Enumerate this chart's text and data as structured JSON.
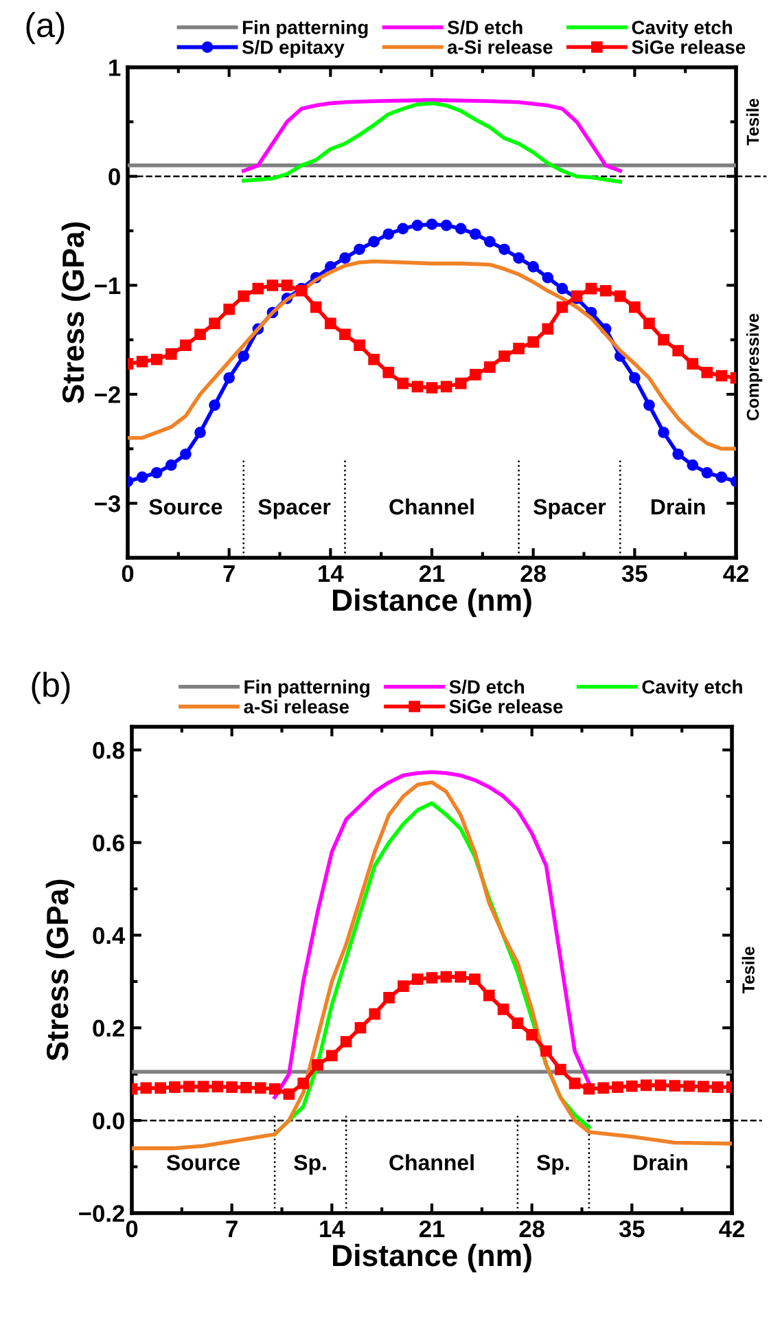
{
  "chart_data": [
    {
      "type": "line",
      "title": "(a)",
      "xlabel": "Distance (nm)",
      "ylabel": "Stress (GPa)",
      "xlim": [
        0,
        42
      ],
      "xticks": [
        0,
        7,
        14,
        21,
        28,
        35,
        42
      ],
      "ylim": [
        -3.5,
        1
      ],
      "yticks": [
        -3,
        -2,
        -1,
        0,
        1
      ],
      "legend": "top",
      "grid": false,
      "series": [
        {
          "name": "Fin patterning",
          "color": "#808080",
          "marker": "none",
          "x": [
            0,
            42
          ],
          "values": [
            0.1,
            0.1
          ]
        },
        {
          "name": "S/D etch",
          "color": "#ff00ff",
          "marker": "none",
          "x": [
            8,
            9,
            10,
            11,
            12,
            13,
            14,
            15,
            17,
            21,
            25,
            27,
            29,
            30,
            31,
            32,
            33,
            34
          ],
          "values": [
            0.05,
            0.1,
            0.3,
            0.5,
            0.62,
            0.65,
            0.67,
            0.68,
            0.69,
            0.7,
            0.69,
            0.68,
            0.65,
            0.62,
            0.5,
            0.3,
            0.1,
            0.05
          ]
        },
        {
          "name": "Cavity etch",
          "color": "#00ff00",
          "marker": "none",
          "x": [
            8,
            9,
            10,
            11,
            12,
            13,
            14,
            15,
            16,
            17,
            18,
            19,
            20,
            21,
            22,
            23,
            24,
            25,
            26,
            27,
            28,
            29,
            30,
            31,
            32,
            33,
            34
          ],
          "values": [
            -0.04,
            -0.03,
            -0.02,
            0.02,
            0.1,
            0.15,
            0.25,
            0.3,
            0.38,
            0.47,
            0.57,
            0.62,
            0.66,
            0.67,
            0.65,
            0.6,
            0.52,
            0.45,
            0.35,
            0.3,
            0.22,
            0.12,
            0.05,
            0.0,
            -0.01,
            -0.03,
            -0.05
          ]
        },
        {
          "name": "S/D epitaxy",
          "color": "#0000ff",
          "marker": "circle",
          "x": [
            0,
            1,
            2,
            3,
            4,
            5,
            6,
            7,
            8,
            9,
            10,
            11,
            12,
            13,
            14,
            15,
            16,
            17,
            18,
            19,
            20,
            21,
            22,
            23,
            24,
            25,
            26,
            27,
            28,
            29,
            30,
            31,
            32,
            33,
            34,
            35,
            36,
            37,
            38,
            39,
            40,
            41,
            42
          ],
          "values": [
            -2.8,
            -2.76,
            -2.72,
            -2.65,
            -2.55,
            -2.35,
            -2.1,
            -1.85,
            -1.65,
            -1.4,
            -1.25,
            -1.12,
            -1.03,
            -0.93,
            -0.83,
            -0.75,
            -0.67,
            -0.6,
            -0.53,
            -0.48,
            -0.45,
            -0.44,
            -0.45,
            -0.48,
            -0.53,
            -0.6,
            -0.67,
            -0.75,
            -0.83,
            -0.93,
            -1.03,
            -1.12,
            -1.25,
            -1.4,
            -1.65,
            -1.85,
            -2.1,
            -2.35,
            -2.55,
            -2.65,
            -2.72,
            -2.76,
            -2.8
          ]
        },
        {
          "name": "a-Si release",
          "color": "#f08228",
          "marker": "none",
          "x": [
            0,
            1,
            2,
            3,
            4,
            5,
            6,
            7,
            8,
            9,
            10,
            11,
            12,
            13,
            14,
            15,
            16,
            17,
            19,
            21,
            23,
            25,
            26,
            27,
            28,
            29,
            30,
            31,
            32,
            33,
            34,
            35,
            36,
            37,
            38,
            39,
            40,
            41,
            42
          ],
          "values": [
            -2.4,
            -2.4,
            -2.35,
            -2.3,
            -2.2,
            -2.0,
            -1.85,
            -1.7,
            -1.55,
            -1.4,
            -1.25,
            -1.13,
            -1.05,
            -0.95,
            -0.88,
            -0.82,
            -0.79,
            -0.78,
            -0.79,
            -0.8,
            -0.8,
            -0.81,
            -0.85,
            -0.9,
            -0.97,
            -1.05,
            -1.12,
            -1.2,
            -1.3,
            -1.45,
            -1.6,
            -1.72,
            -1.85,
            -2.05,
            -2.22,
            -2.35,
            -2.45,
            -2.5,
            -2.5
          ]
        },
        {
          "name": "SiGe release",
          "color": "#ff0000",
          "marker": "square",
          "x": [
            0,
            1,
            2,
            3,
            4,
            5,
            6,
            7,
            8,
            9,
            10,
            11,
            12,
            13,
            14,
            15,
            16,
            17,
            18,
            19,
            20,
            21,
            22,
            23,
            24,
            25,
            26,
            27,
            28,
            29,
            30,
            31,
            32,
            33,
            34,
            35,
            36,
            37,
            38,
            39,
            40,
            41,
            42
          ],
          "values": [
            -1.72,
            -1.7,
            -1.68,
            -1.63,
            -1.55,
            -1.45,
            -1.35,
            -1.22,
            -1.1,
            -1.03,
            -1.0,
            -1.0,
            -1.05,
            -1.2,
            -1.35,
            -1.45,
            -1.55,
            -1.68,
            -1.8,
            -1.9,
            -1.93,
            -1.94,
            -1.93,
            -1.9,
            -1.82,
            -1.75,
            -1.65,
            -1.58,
            -1.52,
            -1.4,
            -1.2,
            -1.1,
            -1.03,
            -1.05,
            -1.1,
            -1.2,
            -1.35,
            -1.5,
            -1.6,
            -1.72,
            -1.8,
            -1.83,
            -1.85
          ]
        }
      ],
      "ref_lines": [
        {
          "axis": "y",
          "value": 0,
          "line_style": "dashed"
        },
        {
          "axis": "x",
          "value": 8,
          "line_style": "dotted"
        },
        {
          "axis": "x",
          "value": 15,
          "line_style": "dotted"
        },
        {
          "axis": "x",
          "value": 27,
          "line_style": "dotted"
        },
        {
          "axis": "x",
          "value": 34,
          "line_style": "dotted"
        }
      ],
      "annotations": [
        "Source",
        "Spacer",
        "Channel",
        "Spacer",
        "Drain",
        "Tesile",
        "Compressive"
      ]
    },
    {
      "type": "line",
      "title": "(b)",
      "xlabel": "Distance (nm)",
      "ylabel": "Stress (GPa)",
      "xlim": [
        0,
        42
      ],
      "xticks": [
        0,
        7,
        14,
        21,
        28,
        35,
        42
      ],
      "ylim": [
        -0.2,
        0.85
      ],
      "yticks": [
        {
          "value": -0.2,
          "label": "−0.2"
        },
        {
          "value": 0,
          "label": "0.0"
        },
        {
          "value": 0.2,
          "label": "0.2"
        },
        {
          "value": 0.4,
          "label": "0.4"
        },
        {
          "value": 0.6,
          "label": "0.6"
        },
        {
          "value": 0.8,
          "label": "0.8"
        }
      ],
      "legend": "top",
      "grid": false,
      "series": [
        {
          "name": "Fin patterning",
          "color": "#808080",
          "marker": "none",
          "x": [
            0,
            42
          ],
          "values": [
            0.105,
            0.105
          ]
        },
        {
          "name": "S/D etch",
          "color": "#ff00ff",
          "marker": "none",
          "x": [
            10,
            11,
            12,
            13,
            14,
            15,
            16,
            17,
            18,
            19,
            20,
            21,
            22,
            23,
            24,
            25,
            26,
            27,
            28,
            29,
            30,
            31,
            32
          ],
          "values": [
            0.05,
            0.1,
            0.3,
            0.45,
            0.58,
            0.65,
            0.68,
            0.71,
            0.73,
            0.745,
            0.75,
            0.752,
            0.75,
            0.745,
            0.735,
            0.72,
            0.7,
            0.67,
            0.62,
            0.55,
            0.35,
            0.15,
            0.08
          ]
        },
        {
          "name": "Cavity etch",
          "color": "#00ff00",
          "marker": "none",
          "x": [
            10,
            11,
            12,
            13,
            14,
            15,
            16,
            17,
            18,
            19,
            20,
            21,
            22,
            23,
            24,
            25,
            26,
            27,
            28,
            29,
            30,
            31,
            32
          ],
          "values": [
            -0.03,
            0.0,
            0.03,
            0.12,
            0.25,
            0.35,
            0.45,
            0.55,
            0.6,
            0.64,
            0.67,
            0.685,
            0.66,
            0.63,
            0.57,
            0.48,
            0.4,
            0.32,
            0.22,
            0.12,
            0.05,
            0.012,
            -0.015
          ]
        },
        {
          "name": "a-Si release",
          "color": "#f08228",
          "marker": "none",
          "x": [
            0,
            3,
            5,
            7,
            9,
            10,
            11,
            12,
            13,
            14,
            15,
            16,
            17,
            18,
            19,
            20,
            21,
            22,
            23,
            24,
            25,
            26,
            27,
            28,
            29,
            30,
            31,
            32,
            35,
            38,
            42
          ],
          "values": [
            -0.06,
            -0.06,
            -0.055,
            -0.045,
            -0.035,
            -0.03,
            0.0,
            0.06,
            0.18,
            0.3,
            0.38,
            0.48,
            0.58,
            0.66,
            0.7,
            0.725,
            0.73,
            0.71,
            0.66,
            0.58,
            0.47,
            0.4,
            0.34,
            0.24,
            0.12,
            0.05,
            0.0,
            -0.025,
            -0.035,
            -0.048,
            -0.05
          ]
        },
        {
          "name": "SiGe release",
          "color": "#ff0000",
          "marker": "square",
          "x": [
            0,
            1,
            2,
            3,
            4,
            5,
            6,
            7,
            8,
            9,
            10,
            11,
            12,
            13,
            14,
            15,
            16,
            17,
            18,
            19,
            20,
            21,
            22,
            23,
            24,
            25,
            26,
            27,
            28,
            29,
            30,
            31,
            32,
            33,
            34,
            35,
            36,
            37,
            38,
            39,
            40,
            41,
            42
          ],
          "values": [
            0.068,
            0.07,
            0.07,
            0.072,
            0.073,
            0.073,
            0.073,
            0.072,
            0.071,
            0.07,
            0.068,
            0.057,
            0.08,
            0.12,
            0.14,
            0.17,
            0.2,
            0.23,
            0.265,
            0.29,
            0.305,
            0.308,
            0.31,
            0.31,
            0.305,
            0.27,
            0.24,
            0.21,
            0.185,
            0.15,
            0.11,
            0.08,
            0.068,
            0.07,
            0.072,
            0.074,
            0.076,
            0.076,
            0.075,
            0.074,
            0.073,
            0.072,
            0.072
          ]
        }
      ],
      "ref_lines": [
        {
          "axis": "y",
          "value": 0,
          "line_style": "dashed"
        },
        {
          "axis": "x",
          "value": 10,
          "line_style": "dotted"
        },
        {
          "axis": "x",
          "value": 15,
          "line_style": "dotted"
        },
        {
          "axis": "x",
          "value": 27,
          "line_style": "dotted"
        },
        {
          "axis": "x",
          "value": 32,
          "line_style": "dotted"
        }
      ],
      "annotations": [
        "Source",
        "Sp.",
        "Channel",
        "Sp.",
        "Drain",
        "Tesile"
      ]
    }
  ]
}
